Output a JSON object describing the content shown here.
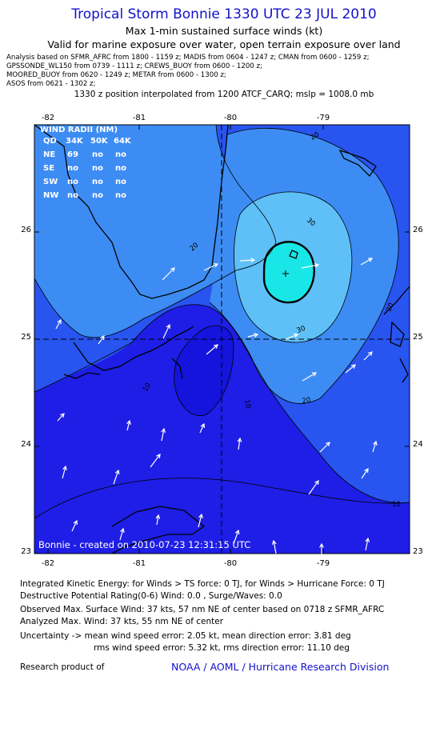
{
  "header": {
    "title": "Tropical Storm Bonnie 1330 UTC 23 JUL 2010",
    "subtitle1": "Max 1-min sustained surface winds (kt)",
    "subtitle2": "Valid for marine exposure over water, open terrain exposure over land",
    "sources": [
      "Analysis based on  SFMR_AFRC from 1800 - 1159 z;  MADIS from 0604 - 1247 z;  CMAN from 0600 - 1259 z;",
      "GPSSONDE_WL150 from 0739 - 1111 z;  CREWS_BUOY from 0600 - 1200 z;",
      "MOORED_BUOY from 0620 - 1249 z;   METAR from 0600 - 1300 z;",
      "ASOS from 0621 - 1302 z;"
    ],
    "position_note": "1330 z position interpolated from 1200 ATCF_CARQ; mslp = 1008.0 mb"
  },
  "map": {
    "x_ticks": [
      "-82",
      "-81",
      "-80",
      "-79"
    ],
    "y_ticks": [
      "26",
      "25",
      "24",
      "23"
    ],
    "contour_labels": [
      "20",
      "20",
      "30",
      "30",
      "20",
      "20",
      "10",
      "10",
      "10"
    ],
    "colors": {
      "c0": "#1e1ee6",
      "c1": "#2854f0",
      "c2": "#3d8cf4",
      "c3": "#5ec0f7",
      "c4": "#19e6e6",
      "land": "#1e50f0"
    },
    "caption": "Bonnie - created on 2010-07-23 12:31:15 UTC"
  },
  "wind_radii": {
    "title": "WIND RADII (NM)",
    "header": [
      "QD",
      "34K",
      "50K",
      "64K"
    ],
    "rows": [
      [
        "NE",
        "69",
        "no",
        "no"
      ],
      [
        "SE",
        "no",
        "no",
        "no"
      ],
      [
        "SW",
        "no",
        "no",
        "no"
      ],
      [
        "NW",
        "no",
        "no",
        "no"
      ]
    ]
  },
  "footer": {
    "ike": "Integrated Kinetic Energy:  for Winds > TS force: 0 TJ,  for Winds > Hurricane Force: 0 TJ",
    "dpr": "Destructive Potential Rating(0-6)   Wind: 0.0 , Surge/Waves: 0.0",
    "observed": "Observed Max. Surface Wind: 37 kts, 57 nm NE of center based on 0718 z SFMR_AFRC",
    "analyzed": "Analyzed Max. Wind: 37 kts, 55 nm NE of center",
    "uncertainty1": "Uncertainty -> mean wind speed error: 2.05 kt,    mean direction error: 3.81 deg",
    "uncertainty2": "rms wind speed error: 5.32 kt,   rms direction error: 11.10 deg",
    "research": "Research product of",
    "org": "NOAA / AOML / Hurricane Research Division"
  }
}
